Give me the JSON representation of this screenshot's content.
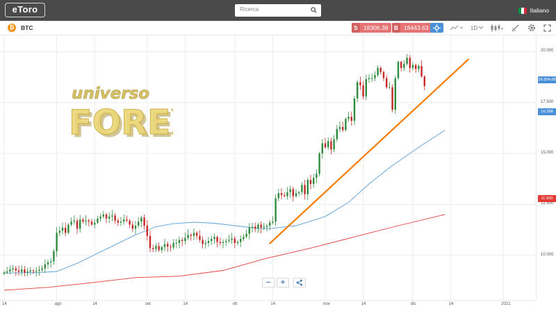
{
  "header": {
    "logo": "eToro",
    "search_placeholder": "Ricerca",
    "language": "Italiano"
  },
  "toolbar": {
    "symbol": "BTC",
    "sell_tag": "S",
    "sell_price": "18306.38",
    "buy_tag": "B",
    "buy_price": "18443.63",
    "timeframe": "1D"
  },
  "watermark": {
    "line1": "universo",
    "line2": "FOREX"
  },
  "icons": {
    "search": "search-icon",
    "flag": "italy-flag-icon",
    "coin": "bitcoin-icon",
    "crosshair": "crosshair-icon",
    "chart_type": "line-chart-icon",
    "candles": "candlestick-icon",
    "draw": "pencil-icon",
    "settings": "gear-icon",
    "fullscreen": "fullscreen-icon",
    "zoom_out": "minus-icon",
    "zoom_in": "plus-icon",
    "share": "share-icon"
  },
  "colors": {
    "up": "#2e8b3e",
    "down": "#c62828",
    "trendline": "#f57c00",
    "ma_fast": "#5aa0d8",
    "ma_slow": "#e53935",
    "price_tag": "#4a90d9"
  },
  "chart_data": {
    "type": "candlestick",
    "y_ticks": [
      "20.000",
      "17.500",
      "15.000",
      "12.500",
      "10.000"
    ],
    "ylim": [
      7800,
      20800
    ],
    "price_labels": {
      "current": "18.304,68",
      "ma_fast": "16.288",
      "ma_slow": "11.900"
    },
    "x_ticks": [
      {
        "label": "14",
        "day": 0
      },
      {
        "label": "ago",
        "day": 18
      },
      {
        "label": "14",
        "day": 31
      },
      {
        "label": "set",
        "day": 49
      },
      {
        "label": "14",
        "day": 62
      },
      {
        "label": "ott",
        "day": 79
      },
      {
        "label": "14",
        "day": 92
      },
      {
        "label": "nov",
        "day": 110
      },
      {
        "label": "14",
        "day": 123
      },
      {
        "label": "dic",
        "day": 140
      },
      {
        "label": "14",
        "day": 153
      },
      {
        "label": "2021",
        "day": 171
      }
    ],
    "closes": [
      9150,
      9200,
      9300,
      9350,
      9250,
      9180,
      9300,
      9150,
      9200,
      9250,
      9220,
      9230,
      9280,
      9350,
      9550,
      9650,
      9700,
      10200,
      11100,
      11200,
      11350,
      11100,
      11500,
      11650,
      11700,
      11300,
      11750,
      11650,
      11700,
      11650,
      11500,
      11600,
      11800,
      11900,
      12000,
      11800,
      11900,
      11950,
      11700,
      11600,
      11650,
      11750,
      11700,
      11500,
      11300,
      11450,
      11650,
      11850,
      11450,
      10950,
      10350,
      10300,
      10450,
      10250,
      10400,
      10550,
      10420,
      10380,
      10600,
      10600,
      10750,
      10700,
      10850,
      11000,
      10950,
      11100,
      10950,
      10750,
      10550,
      10600,
      10700,
      10800,
      10900,
      10650,
      10600,
      10650,
      10700,
      10750,
      10820,
      10600,
      10650,
      10800,
      10900,
      11050,
      11350,
      11400,
      11300,
      11500,
      11350,
      11400,
      11450,
      11600,
      11650,
      12800,
      13050,
      12950,
      12900,
      13100,
      13250,
      12900,
      13050,
      13100,
      13450,
      13000,
      13700,
      13500,
      13800,
      14000,
      15000,
      15500,
      15300,
      15600,
      15200,
      15700,
      16200,
      16300,
      16150,
      16700,
      16800,
      16600,
      17700,
      18500,
      18350,
      17800,
      18650,
      18700,
      18700,
      18850,
      19200,
      19000,
      18700,
      18250,
      18250,
      17150,
      18700,
      19500,
      19200,
      19400,
      19700,
      19200,
      19350,
      19150,
      19300,
      18780,
      18304
    ],
    "sma_fast": [
      [
        0,
        9120
      ],
      [
        12,
        9150
      ],
      [
        18,
        9200
      ],
      [
        25,
        9600
      ],
      [
        35,
        10300
      ],
      [
        45,
        11000
      ],
      [
        52,
        11400
      ],
      [
        58,
        11550
      ],
      [
        65,
        11620
      ],
      [
        72,
        11570
      ],
      [
        79,
        11450
      ],
      [
        85,
        11350
      ],
      [
        88,
        11300
      ],
      [
        92,
        11320
      ],
      [
        100,
        11450
      ],
      [
        110,
        11900
      ],
      [
        118,
        12600
      ],
      [
        125,
        13500
      ],
      [
        132,
        14300
      ],
      [
        138,
        14900
      ],
      [
        143,
        15400
      ],
      [
        149,
        15950
      ],
      [
        151,
        16150
      ]
    ],
    "sma_slow": [
      [
        0,
        8280
      ],
      [
        15,
        8420
      ],
      [
        30,
        8650
      ],
      [
        45,
        8900
      ],
      [
        60,
        8970
      ],
      [
        75,
        9250
      ],
      [
        90,
        9850
      ],
      [
        105,
        10350
      ],
      [
        120,
        10900
      ],
      [
        135,
        11450
      ],
      [
        151,
        12000
      ]
    ],
    "trendline": {
      "start": [
        91,
        10580
      ],
      "end": [
        159,
        19620
      ]
    }
  },
  "zoom_controls": {
    "minus": "−",
    "plus": "+"
  }
}
